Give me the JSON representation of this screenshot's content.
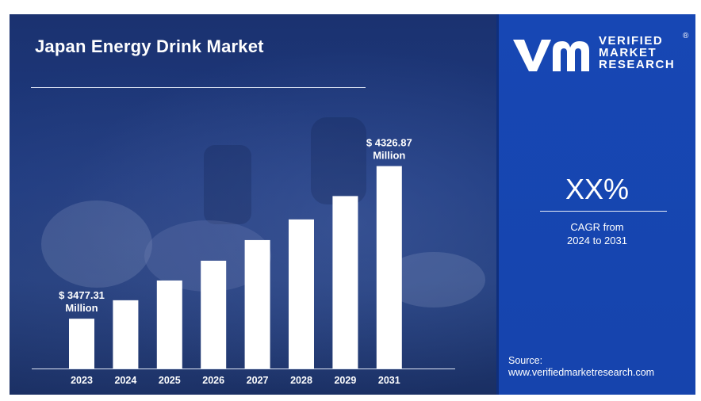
{
  "chart_data": {
    "type": "bar",
    "title": "Japan Energy Drink Market",
    "categories": [
      "2023",
      "2024",
      "2025",
      "2026",
      "2027",
      "2028",
      "2029",
      "2031"
    ],
    "values": [
      3477.31,
      3580,
      3690,
      3800,
      3915,
      4030,
      4160,
      4326.87
    ],
    "annotations": [
      {
        "category": "2023",
        "text_line1": "$ 3477.31",
        "text_line2": "Million"
      },
      {
        "category": "2031",
        "text_line1": "$ 4326.87",
        "text_line2": "Million"
      }
    ],
    "ylim": [
      3200,
      4400
    ],
    "grid": false,
    "bar_color": "#ffffff"
  },
  "header": {
    "title": "Japan Energy Drink Market"
  },
  "brand": {
    "line1": "VERIFIED",
    "line2": "MARKET",
    "line3": "RESEARCH",
    "mark": "®"
  },
  "cagr": {
    "value": "XX%",
    "label_line1": "CAGR from",
    "label_line2": "2024 to 2031"
  },
  "source": {
    "label": "Source:",
    "url": "www.verifiedmarketresearch.com"
  },
  "colors": {
    "panel_blue": "#1747b4",
    "background_navy": "#1b3270",
    "bars": "#ffffff"
  }
}
